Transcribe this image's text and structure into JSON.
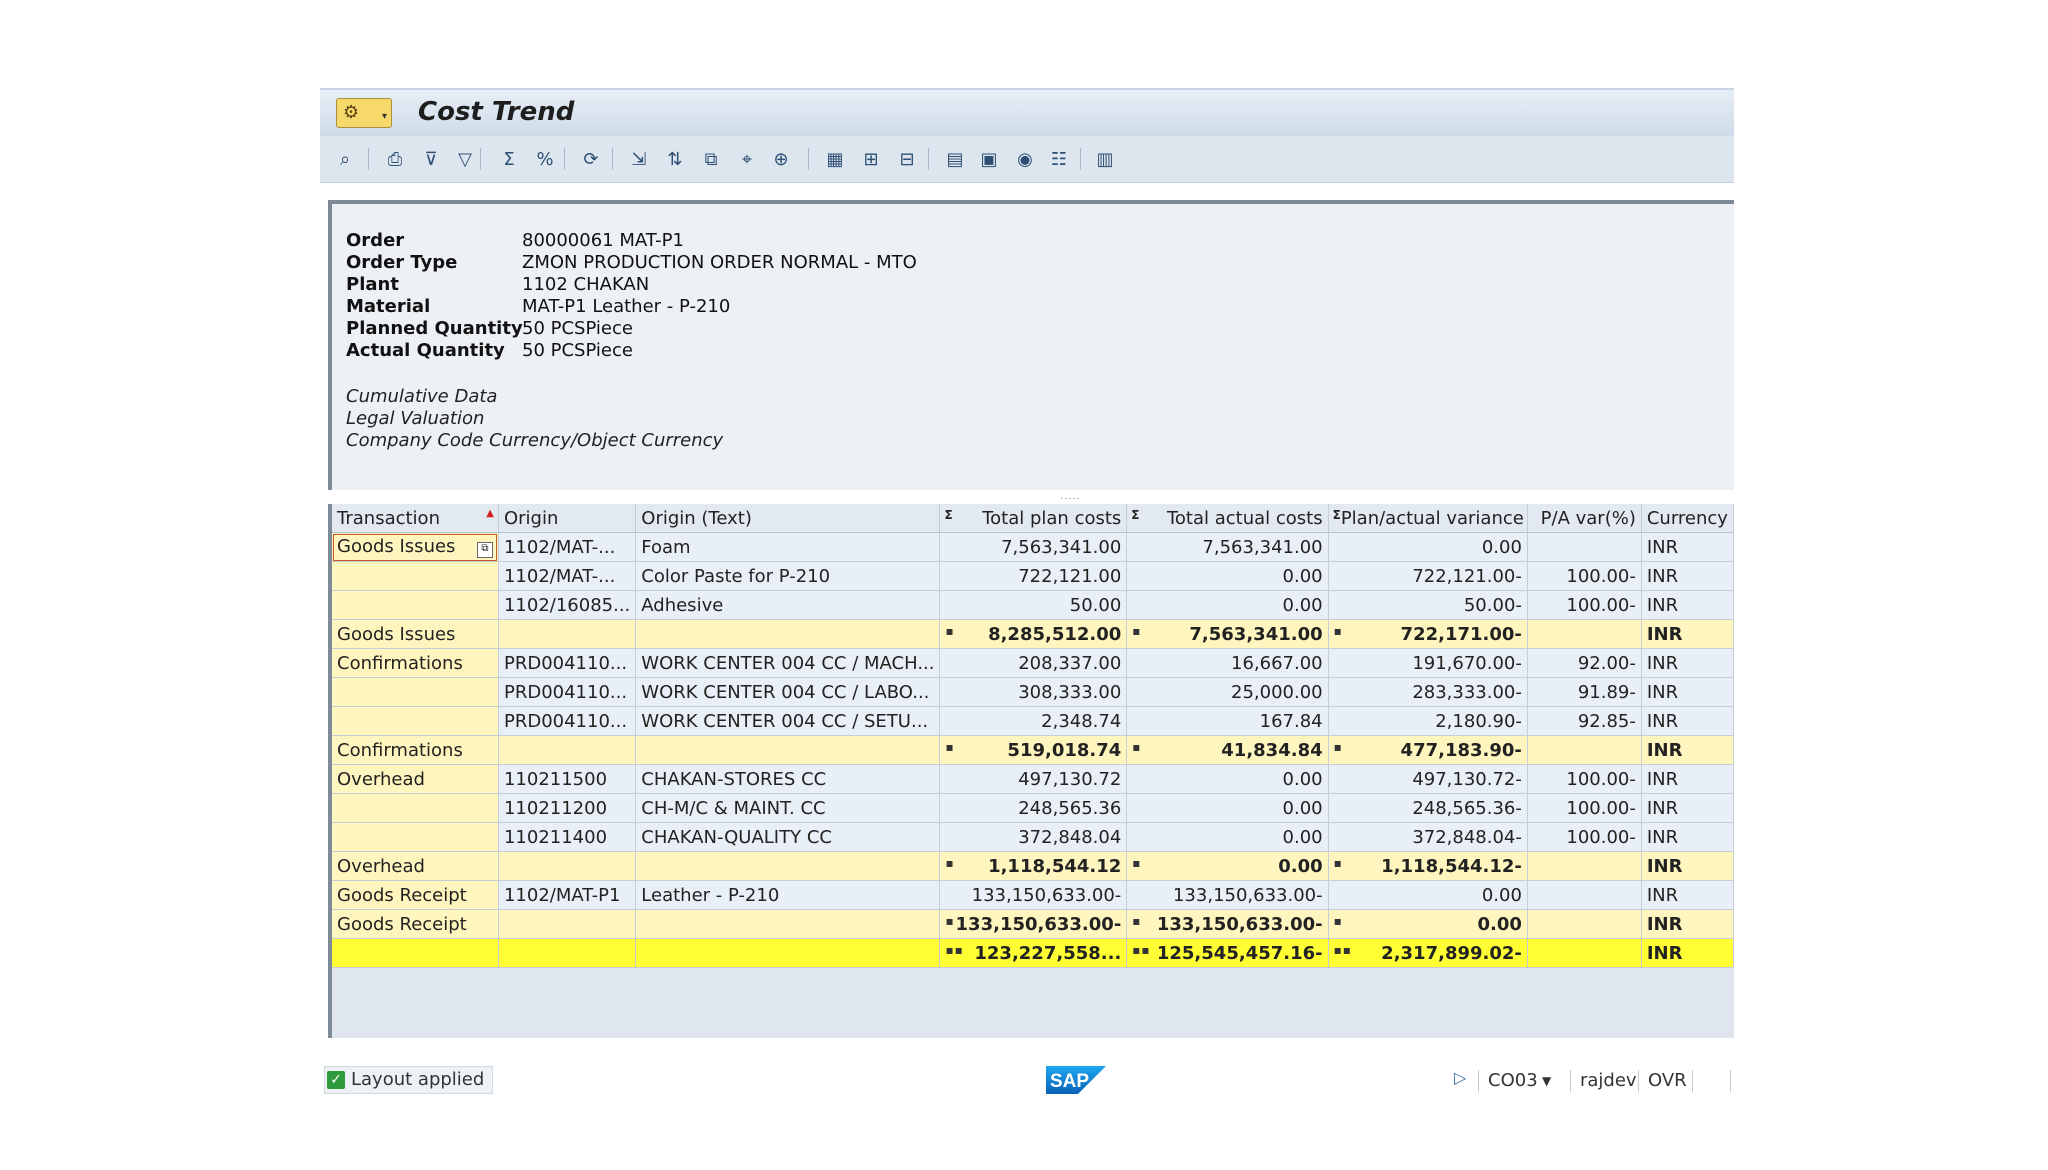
{
  "window": {
    "title": "Cost Trend"
  },
  "header": {
    "fields": [
      {
        "label": "Order",
        "value": "80000061 MAT-P1"
      },
      {
        "label": "Order Type",
        "value": "ZMON PRODUCTION ORDER NORMAL - MTO"
      },
      {
        "label": "Plant",
        "value": "1102 CHAKAN"
      },
      {
        "label": "Material",
        "value": "MAT-P1 Leather - P-210"
      },
      {
        "label": "Planned Quantity",
        "value": "50 PCSPiece"
      },
      {
        "label": "Actual Quantity",
        "value": "50 PCSPiece"
      }
    ],
    "notes": [
      "Cumulative Data",
      "Legal Valuation",
      "Company Code Currency/Object Currency"
    ]
  },
  "toolbar_icons": [
    "select-detail-icon",
    "print-icon",
    "filter-icon",
    "funnel-icon",
    "sum-icon",
    "subtotal-icon",
    "refresh-icon",
    "export-icon",
    "sort-icon",
    "copy-icon",
    "find-icon",
    "zoom-icon",
    "table-icon",
    "columns-icon",
    "layout-icon",
    "calendar-icon",
    "layout-select-icon",
    "history-icon",
    "details-icon",
    "graphic-icon"
  ],
  "grid": {
    "columns": [
      "Transaction",
      "Origin",
      "Origin (Text)",
      "Total plan costs",
      "Total actual costs",
      "Plan/actual variance",
      "P/A var(%)",
      "Currency"
    ],
    "sum_marker": "Σ",
    "rows": [
      {
        "transaction": "Goods Issues",
        "origin": "1102/MAT-...",
        "origin_text": "Foam",
        "plan": "7,563,341.00",
        "actual": "7,563,341.00",
        "variance": "0.00",
        "pct": "",
        "currency": "INR"
      },
      {
        "transaction": "",
        "origin": "1102/MAT-...",
        "origin_text": "Color Paste for P-210",
        "plan": "722,121.00",
        "actual": "0.00",
        "variance": "722,121.00-",
        "pct": "100.00-",
        "currency": "INR"
      },
      {
        "transaction": "",
        "origin": "1102/16085...",
        "origin_text": "Adhesive",
        "plan": "50.00",
        "actual": "0.00",
        "variance": "50.00-",
        "pct": "100.00-",
        "currency": "INR"
      },
      {
        "type": "subtotal",
        "transaction": "Goods Issues",
        "plan": "8,285,512.00",
        "actual": "7,563,341.00",
        "variance": "722,171.00-",
        "currency": "INR"
      },
      {
        "transaction": "Confirmations",
        "origin": "PRD004110...",
        "origin_text": "WORK CENTER 004 CC / MACH...",
        "plan": "208,337.00",
        "actual": "16,667.00",
        "variance": "191,670.00-",
        "pct": "92.00-",
        "currency": "INR"
      },
      {
        "transaction": "",
        "origin": "PRD004110...",
        "origin_text": "WORK CENTER 004 CC / LABO...",
        "plan": "308,333.00",
        "actual": "25,000.00",
        "variance": "283,333.00-",
        "pct": "91.89-",
        "currency": "INR"
      },
      {
        "transaction": "",
        "origin": "PRD004110...",
        "origin_text": "WORK CENTER 004 CC / SETU...",
        "plan": "2,348.74",
        "actual": "167.84",
        "variance": "2,180.90-",
        "pct": "92.85-",
        "currency": "INR"
      },
      {
        "type": "subtotal",
        "transaction": "Confirmations",
        "plan": "519,018.74",
        "actual": "41,834.84",
        "variance": "477,183.90-",
        "currency": "INR"
      },
      {
        "transaction": "Overhead",
        "origin": "110211500",
        "origin_text": "CHAKAN-STORES CC",
        "plan": "497,130.72",
        "actual": "0.00",
        "variance": "497,130.72-",
        "pct": "100.00-",
        "currency": "INR"
      },
      {
        "transaction": "",
        "origin": "110211200",
        "origin_text": "CH-M/C & MAINT. CC",
        "plan": "248,565.36",
        "actual": "0.00",
        "variance": "248,565.36-",
        "pct": "100.00-",
        "currency": "INR"
      },
      {
        "transaction": "",
        "origin": "110211400",
        "origin_text": "CHAKAN-QUALITY CC",
        "plan": "372,848.04",
        "actual": "0.00",
        "variance": "372,848.04-",
        "pct": "100.00-",
        "currency": "INR"
      },
      {
        "type": "subtotal",
        "transaction": "Overhead",
        "plan": "1,118,544.12",
        "actual": "0.00",
        "variance": "1,118,544.12-",
        "currency": "INR"
      },
      {
        "transaction": "Goods Receipt",
        "origin": "1102/MAT-P1",
        "origin_text": "Leather - P-210",
        "plan": "133,150,633.00-",
        "actual": "133,150,633.00-",
        "variance": "0.00",
        "pct": "",
        "currency": "INR"
      },
      {
        "type": "subtotal",
        "transaction": "Goods Receipt",
        "plan": "133,150,633.00-",
        "actual": "133,150,633.00-",
        "variance": "0.00",
        "currency": "INR"
      },
      {
        "type": "total",
        "transaction": "",
        "plan": "123,227,558...",
        "actual": "125,545,457.16-",
        "variance": "2,317,899.02-",
        "currency": "INR"
      }
    ]
  },
  "status": {
    "message": "Layout applied",
    "transaction_code": "CO03",
    "user": "rajdev",
    "mode": "OVR",
    "logo_text": "SAP"
  },
  "colors": {
    "subtotal_row": "#fff6bf",
    "total_row": "#ffff33",
    "cell": "#e9eff6"
  }
}
